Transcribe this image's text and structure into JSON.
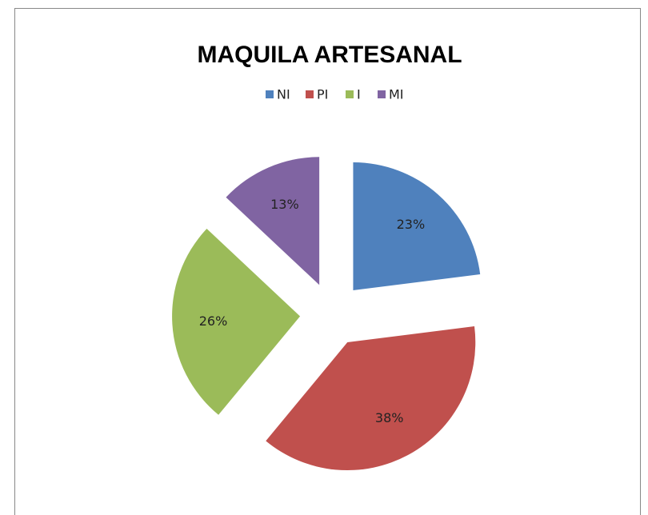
{
  "chart_data": {
    "type": "pie",
    "title": "MAQUILA ARTESANAL",
    "categories": [
      "NI",
      "PI",
      "I",
      "MI"
    ],
    "values": [
      23,
      38,
      26,
      13
    ],
    "value_labels": [
      "23%",
      "38%",
      "26%",
      "13%"
    ],
    "colors": [
      "#4f81bd",
      "#c0504d",
      "#9bbb59",
      "#8064a2"
    ],
    "legend": "top"
  }
}
